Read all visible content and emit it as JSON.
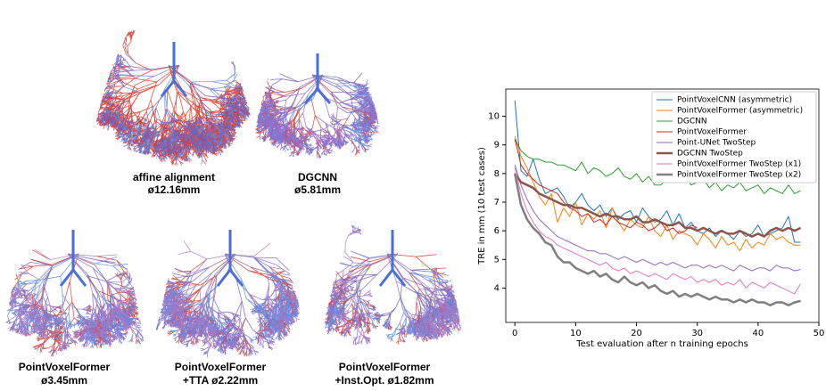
{
  "panels": [
    {
      "label": "affine alignment",
      "value": "ø12.16mm"
    },
    {
      "label": "DGCNN",
      "value": "ø5.81mm"
    },
    {
      "label": "PointVoxelFormer",
      "value": "ø3.45mm"
    },
    {
      "label": "PointVoxelFormer",
      "value": "+TTA ø2.22mm"
    },
    {
      "label": "PointVoxelFormer",
      "value": "+Inst.Opt. ø1.82mm"
    }
  ],
  "chart_data": {
    "type": "line",
    "x_label": "Test evaluation after n training epochs",
    "y_label": "TRE in mm (10 test cases)",
    "x": [
      0,
      1,
      2,
      3,
      4,
      5,
      6,
      7,
      8,
      9,
      10,
      11,
      12,
      13,
      14,
      15,
      16,
      17,
      18,
      19,
      20,
      21,
      22,
      23,
      24,
      25,
      26,
      27,
      28,
      29,
      30,
      31,
      32,
      33,
      34,
      35,
      36,
      37,
      38,
      39,
      40,
      41,
      42,
      43,
      44,
      45,
      46,
      47
    ],
    "xlim": [
      -1.5,
      50
    ],
    "xticks": [
      0,
      10,
      20,
      30,
      40,
      50
    ],
    "ylim": [
      2.8,
      10.95
    ],
    "yticks": [
      4,
      5,
      6,
      7,
      8,
      9,
      10
    ],
    "legend": "upper right",
    "series": [
      {
        "name": "PointVoxelCNN (asymmetric)",
        "color": "#1f77b4",
        "linewidth": 1,
        "values": [
          10.55,
          8.1,
          7.9,
          8.5,
          7.8,
          7.3,
          7.4,
          7.5,
          7.2,
          6.8,
          7.0,
          7.3,
          6.9,
          6.7,
          6.9,
          6.5,
          6.8,
          6.4,
          6.6,
          6.7,
          6.3,
          6.8,
          6.5,
          6.3,
          6.4,
          6.7,
          6.2,
          6.6,
          6.1,
          6.3,
          6.0,
          5.9,
          6.1,
          5.8,
          6.0,
          5.9,
          5.7,
          6.0,
          5.8,
          5.9,
          6.2,
          5.8,
          5.9,
          6.0,
          6.1,
          6.5,
          5.6,
          5.6
        ]
      },
      {
        "name": "PointVoxelFormer (asymmetric)",
        "color": "#ff7f0e",
        "linewidth": 1,
        "values": [
          9.3,
          8.6,
          8.2,
          7.7,
          7.2,
          6.9,
          7.3,
          6.3,
          6.8,
          6.5,
          7.0,
          6.2,
          6.6,
          6.4,
          6.7,
          6.1,
          6.8,
          6.3,
          6.0,
          6.4,
          6.2,
          6.1,
          6.5,
          6.0,
          5.8,
          6.2,
          5.7,
          6.0,
          5.9,
          5.8,
          5.5,
          5.9,
          5.7,
          5.4,
          5.8,
          5.5,
          5.6,
          5.3,
          5.7,
          5.4,
          5.6,
          5.5,
          5.9,
          5.7,
          5.8,
          5.6,
          5.5,
          5.5
        ]
      },
      {
        "name": "DGCNN",
        "color": "#2ca02c",
        "linewidth": 1,
        "values": [
          9.2,
          8.8,
          8.6,
          8.5,
          8.5,
          8.4,
          8.4,
          8.3,
          8.3,
          8.2,
          8.1,
          8.4,
          8.0,
          8.2,
          8.1,
          7.9,
          8.0,
          8.2,
          7.9,
          7.8,
          8.0,
          7.7,
          7.9,
          7.6,
          7.6,
          7.8,
          7.7,
          7.8,
          7.9,
          7.6,
          7.7,
          7.8,
          7.5,
          7.7,
          7.4,
          7.6,
          7.5,
          7.7,
          7.4,
          7.5,
          7.6,
          7.3,
          7.5,
          7.4,
          7.3,
          7.6,
          7.3,
          7.4
        ]
      },
      {
        "name": "PointVoxelFormer",
        "color": "#d62728",
        "linewidth": 1,
        "values": [
          9.2,
          8.3,
          8.0,
          7.8,
          7.6,
          7.5,
          7.4,
          7.3,
          7.0,
          6.8,
          6.7,
          6.5,
          6.6,
          6.3,
          6.4,
          6.2,
          6.5,
          6.3,
          6.2,
          6.1,
          6.3,
          6.2,
          6.0,
          6.1,
          6.3,
          6.0,
          6.1,
          5.9,
          6.0,
          6.2,
          6.1,
          null,
          null,
          null,
          null,
          null,
          null,
          null,
          null,
          null,
          null,
          null,
          null,
          null,
          null,
          null,
          null,
          null
        ]
      },
      {
        "name": "Point-UNet TwoStep",
        "color": "#9467bd",
        "linewidth": 1,
        "values": [
          8.3,
          7.6,
          7.1,
          6.7,
          6.4,
          6.2,
          6.0,
          5.8,
          5.7,
          5.6,
          5.5,
          5.4,
          5.3,
          5.3,
          5.2,
          5.2,
          5.1,
          5.0,
          5.1,
          5.0,
          4.9,
          5.0,
          4.9,
          4.8,
          4.9,
          4.8,
          4.9,
          4.8,
          4.7,
          4.8,
          4.8,
          4.7,
          4.8,
          4.7,
          4.8,
          4.7,
          4.6,
          4.8,
          4.7,
          4.6,
          4.7,
          4.7,
          4.6,
          4.8,
          4.7,
          4.7,
          4.6,
          4.65
        ]
      },
      {
        "name": "DGCNN TwoStep",
        "color": "#8c564b",
        "linewidth": 2.5,
        "values": [
          8.0,
          7.7,
          7.6,
          7.5,
          7.3,
          7.2,
          7.1,
          7.0,
          6.9,
          6.9,
          6.8,
          6.8,
          6.7,
          6.6,
          6.5,
          6.6,
          6.5,
          6.5,
          6.4,
          6.4,
          6.5,
          6.3,
          6.3,
          6.4,
          6.3,
          6.2,
          6.2,
          6.3,
          6.1,
          6.1,
          6.0,
          6.1,
          6.0,
          5.9,
          6.0,
          5.9,
          5.9,
          6.0,
          5.9,
          5.8,
          5.9,
          5.8,
          6.0,
          6.1,
          6.0,
          6.1,
          6.0,
          6.1
        ]
      },
      {
        "name": "PointVoxelFormer TwoStep (x1)",
        "color": "#e377c2",
        "linewidth": 1,
        "values": [
          8.2,
          7.3,
          6.7,
          6.3,
          6.0,
          5.8,
          5.7,
          5.5,
          5.4,
          5.3,
          5.2,
          5.1,
          5.0,
          4.9,
          4.8,
          4.9,
          4.7,
          4.6,
          4.7,
          4.5,
          4.6,
          4.5,
          4.4,
          4.5,
          4.4,
          4.3,
          4.5,
          4.4,
          4.3,
          4.4,
          4.2,
          4.3,
          4.2,
          4.3,
          4.1,
          4.2,
          4.1,
          4.3,
          4.0,
          4.2,
          4.1,
          4.0,
          4.2,
          4.1,
          4.0,
          3.9,
          3.8,
          4.15
        ]
      },
      {
        "name": "PointVoxelFormer TwoStep (x2)",
        "color": "#7f7f7f",
        "linewidth": 2.5,
        "values": [
          8.0,
          6.9,
          6.4,
          6.1,
          5.9,
          5.6,
          5.5,
          5.1,
          4.9,
          4.9,
          4.7,
          4.6,
          4.5,
          4.6,
          4.4,
          4.5,
          4.3,
          4.2,
          4.4,
          4.2,
          4.1,
          4.2,
          4.0,
          4.1,
          3.9,
          3.8,
          3.9,
          3.7,
          3.8,
          3.7,
          3.8,
          3.7,
          3.6,
          3.7,
          3.6,
          3.6,
          3.5,
          3.6,
          3.5,
          3.6,
          3.5,
          3.5,
          3.4,
          3.5,
          3.5,
          3.4,
          3.5,
          3.55
        ]
      }
    ]
  }
}
